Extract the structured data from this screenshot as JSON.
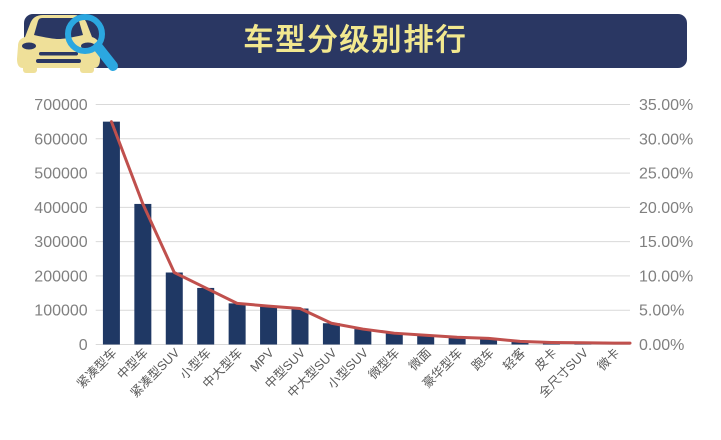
{
  "header": {
    "title": "车型分级别排行",
    "icon": "car-with-magnifier-icon"
  },
  "colors": {
    "header_bg": "#2A3763",
    "title": "#F2E88F",
    "car": "#EFE099",
    "magnifier": "#2BA7E0",
    "bar": "#1F3864",
    "line": "#C0504D",
    "grid": "#D9D9D9",
    "axis_tick": "#808080",
    "x_label": "#595959"
  },
  "chart_data": {
    "type": "bar",
    "title": "车型分级别排行",
    "categories": [
      "紧凑型车",
      "中型车",
      "紧凑型SUV",
      "小型车",
      "中大型车",
      "MPV",
      "中型SUV",
      "中大型SUV",
      "小型SUV",
      "微型车",
      "微面",
      "豪华型车",
      "跑车",
      "轻客",
      "皮卡",
      "全尺寸SUV",
      "微卡"
    ],
    "series": [
      {
        "name": "bar-series",
        "type": "bar",
        "axis": "left",
        "values": [
          650000,
          410000,
          210000,
          165000,
          120000,
          112000,
          105000,
          62000,
          45000,
          33000,
          27000,
          21000,
          18000,
          9000,
          6000,
          5000,
          4000
        ]
      },
      {
        "name": "line-series",
        "type": "line",
        "axis": "right",
        "values_percent": [
          32.5,
          20.5,
          10.5,
          8.25,
          6.0,
          5.6,
          5.25,
          3.1,
          2.25,
          1.65,
          1.35,
          1.05,
          0.9,
          0.45,
          0.3,
          0.25,
          0.2
        ]
      }
    ],
    "y_axis_left": {
      "range": [
        0,
        700000
      ],
      "tick_step": 100000,
      "ticks": [
        "0",
        "100000",
        "200000",
        "300000",
        "400000",
        "500000",
        "600000",
        "700000"
      ]
    },
    "y_axis_right": {
      "range_percent": [
        0,
        35
      ],
      "tick_step_percent": 5,
      "ticks": [
        "0.00%",
        "5.00%",
        "10.00%",
        "15.00%",
        "20.00%",
        "25.00%",
        "30.00%",
        "35.00%"
      ]
    },
    "grid": true,
    "legend": "none",
    "x_labels_rotation_deg": -45
  }
}
